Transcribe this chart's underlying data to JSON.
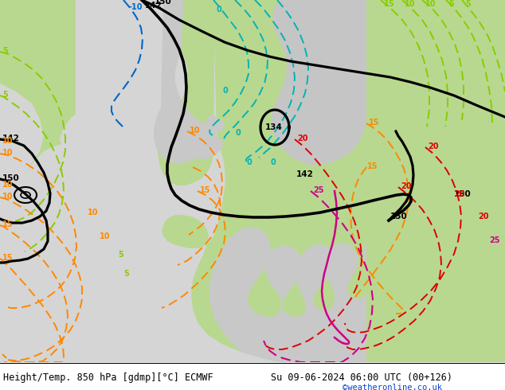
{
  "title_left": "Height/Temp. 850 hPa [gdmp][°C] ECMWF",
  "title_right": "Su 09-06-2024 06:00 UTC (00+126)",
  "credit": "©weatheronline.co.uk",
  "bg_light": "#e8e8e8",
  "land_green": "#b8d890",
  "land_gray": "#c8c8c8",
  "sea_gray": "#d8d8d8",
  "font_size_title": 8.5,
  "font_size_credit": 7.5
}
